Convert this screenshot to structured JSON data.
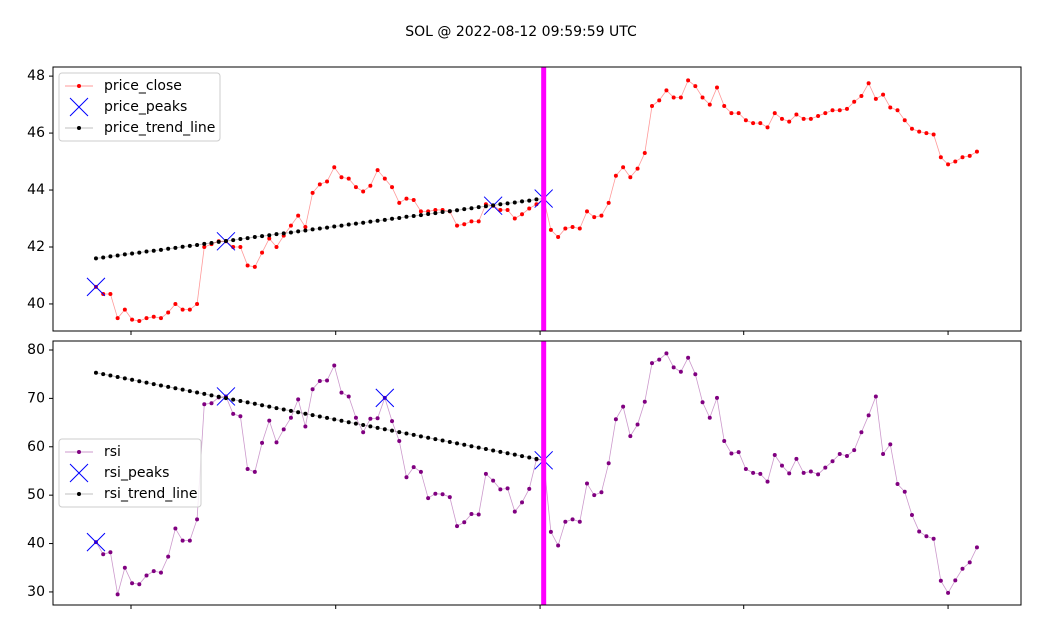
{
  "title": "SOL @ 2022-08-12 09:59:59 UTC",
  "chart_data": [
    {
      "type": "line",
      "xlim": [
        -5.95,
        128.1
      ],
      "xticks": [
        4.85,
        33.2,
        61.5,
        89.7,
        118.0
      ],
      "ylim": [
        39.05,
        48.32
      ],
      "yticks": [
        40,
        42,
        44,
        46,
        48
      ],
      "legend": "upper left",
      "vline": {
        "value": 62,
        "color": "#ff00ff"
      },
      "series": [
        {
          "name": "price_close",
          "color": "#ff0000",
          "style": "line-dots",
          "values": [
            40.6,
            40.35,
            40.35,
            39.5,
            39.8,
            39.45,
            39.4,
            39.5,
            39.55,
            39.5,
            39.7,
            40.0,
            39.8,
            39.8,
            40.0,
            42.0,
            42.1,
            42.2,
            42.2,
            42.0,
            42.0,
            41.35,
            41.3,
            41.8,
            42.3,
            42.0,
            42.4,
            42.75,
            43.1,
            42.7,
            43.9,
            44.2,
            44.3,
            44.8,
            44.45,
            44.4,
            44.1,
            43.95,
            44.15,
            44.7,
            44.4,
            44.1,
            43.55,
            43.7,
            43.65,
            43.25,
            43.25,
            43.3,
            43.3,
            43.25,
            42.75,
            42.8,
            42.9,
            42.9,
            43.5,
            43.45,
            43.3,
            43.3,
            43.0,
            43.15,
            43.35,
            43.5,
            43.7,
            42.6,
            42.35,
            42.65,
            42.7,
            42.65,
            43.25,
            43.05,
            43.1,
            43.55,
            44.5,
            44.8,
            44.45,
            44.75,
            45.3,
            46.95,
            47.15,
            47.5,
            47.25,
            47.25,
            47.85,
            47.65,
            47.25,
            47.0,
            47.6,
            46.95,
            46.7,
            46.7,
            46.45,
            46.35,
            46.35,
            46.2,
            46.7,
            46.5,
            46.4,
            46.65,
            46.5,
            46.5,
            46.6,
            46.7,
            46.8,
            46.8,
            46.85,
            47.1,
            47.3,
            47.75,
            47.2,
            47.35,
            46.9,
            46.8,
            46.45,
            46.15,
            46.05,
            46.0,
            45.95,
            45.15,
            44.9,
            45.0,
            45.15,
            45.2,
            45.35
          ]
        },
        {
          "name": "price_peaks",
          "color": "#0000ff",
          "style": "x-markers",
          "x": [
            0,
            18,
            55,
            62
          ],
          "values": [
            40.6,
            42.2,
            43.45,
            43.7
          ]
        },
        {
          "name": "price_trend_line",
          "color": "#000000",
          "style": "trend",
          "values": [
            41.6,
            41.63,
            41.67,
            41.7,
            41.74,
            41.77,
            41.8,
            41.84,
            41.87,
            41.9,
            41.94,
            41.97,
            42.01,
            42.04,
            42.07,
            42.11,
            42.14,
            42.18,
            42.21,
            42.24,
            42.28,
            42.31,
            42.35,
            42.38,
            42.41,
            42.45,
            42.48,
            42.51,
            42.55,
            42.58,
            42.62,
            42.65,
            42.68,
            42.72,
            42.75,
            42.79,
            42.82,
            42.85,
            42.89,
            42.92,
            42.95,
            42.99,
            43.02,
            43.06,
            43.09,
            43.12,
            43.16,
            43.19,
            43.23,
            43.26,
            43.29,
            43.33,
            43.36,
            43.4,
            43.43,
            43.46,
            43.5,
            43.53,
            43.56,
            43.6,
            43.63,
            43.67,
            43.7
          ]
        }
      ]
    },
    {
      "type": "line",
      "xlim": [
        -5.95,
        128.1
      ],
      "xticks": [
        4.85,
        33.2,
        61.5,
        89.7,
        118.0
      ],
      "ylim": [
        27.3,
        81.86
      ],
      "yticks": [
        30,
        40,
        50,
        60,
        70,
        80
      ],
      "legend": "center left",
      "vline": {
        "value": 62,
        "color": "#ff00ff"
      },
      "series": [
        {
          "name": "rsi",
          "color": "#800080",
          "style": "line-dots",
          "values": [
            40.3,
            37.8,
            38.2,
            29.5,
            35.0,
            31.8,
            31.6,
            33.4,
            34.3,
            34.0,
            37.3,
            43.1,
            40.6,
            40.6,
            45.0,
            68.8,
            69.0,
            70.2,
            70.4,
            66.8,
            66.3,
            55.4,
            54.8,
            60.8,
            65.4,
            60.9,
            63.6,
            66.0,
            69.8,
            64.2,
            71.9,
            73.6,
            73.7,
            76.8,
            71.2,
            70.4,
            66.0,
            63.0,
            65.8,
            65.9,
            70.1,
            65.3,
            61.2,
            53.7,
            55.8,
            54.8,
            49.4,
            50.3,
            50.2,
            49.6,
            43.6,
            44.4,
            46.1,
            46.0,
            54.4,
            53.0,
            51.2,
            51.4,
            46.6,
            48.5,
            51.3,
            57.4,
            57.2,
            42.4,
            39.6,
            44.5,
            45.0,
            44.5,
            52.4,
            50.0,
            50.6,
            56.6,
            65.7,
            68.3,
            62.2,
            64.6,
            69.3,
            77.3,
            78.0,
            79.3,
            76.4,
            75.5,
            78.4,
            75.0,
            69.2,
            66.0,
            70.1,
            61.2,
            58.6,
            58.9,
            55.4,
            54.6,
            54.4,
            52.8,
            58.3,
            56.1,
            54.5,
            57.5,
            54.6,
            54.9,
            54.3,
            55.7,
            57.0,
            58.5,
            58.1,
            59.3,
            63.0,
            66.5,
            70.4,
            58.5,
            60.5,
            52.3,
            50.7,
            45.9,
            42.5,
            41.5,
            41.0,
            32.3,
            29.8,
            32.4,
            34.8,
            36.1,
            39.2
          ]
        },
        {
          "name": "rsi_peaks",
          "color": "#0000ff",
          "style": "x-markers",
          "x": [
            0,
            18,
            40,
            62
          ],
          "values": [
            40.3,
            70.4,
            70.1,
            57.2
          ]
        },
        {
          "name": "rsi_trend_line",
          "color": "#000000",
          "style": "trend",
          "values": [
            75.3,
            75.01,
            74.72,
            74.42,
            74.13,
            73.84,
            73.55,
            73.26,
            72.96,
            72.67,
            72.38,
            72.09,
            71.8,
            71.5,
            71.21,
            70.92,
            70.63,
            70.34,
            70.05,
            69.75,
            69.46,
            69.17,
            68.88,
            68.59,
            68.29,
            68.0,
            67.71,
            67.42,
            67.13,
            66.83,
            66.54,
            66.25,
            65.96,
            65.67,
            65.37,
            65.08,
            64.79,
            64.5,
            64.21,
            63.91,
            63.62,
            63.33,
            63.04,
            62.75,
            62.45,
            62.16,
            61.87,
            61.58,
            61.29,
            60.99,
            60.7,
            60.41,
            60.12,
            59.83,
            59.53,
            59.24,
            58.95,
            58.66,
            58.37,
            58.07,
            57.78,
            57.49,
            57.2
          ]
        }
      ]
    }
  ]
}
